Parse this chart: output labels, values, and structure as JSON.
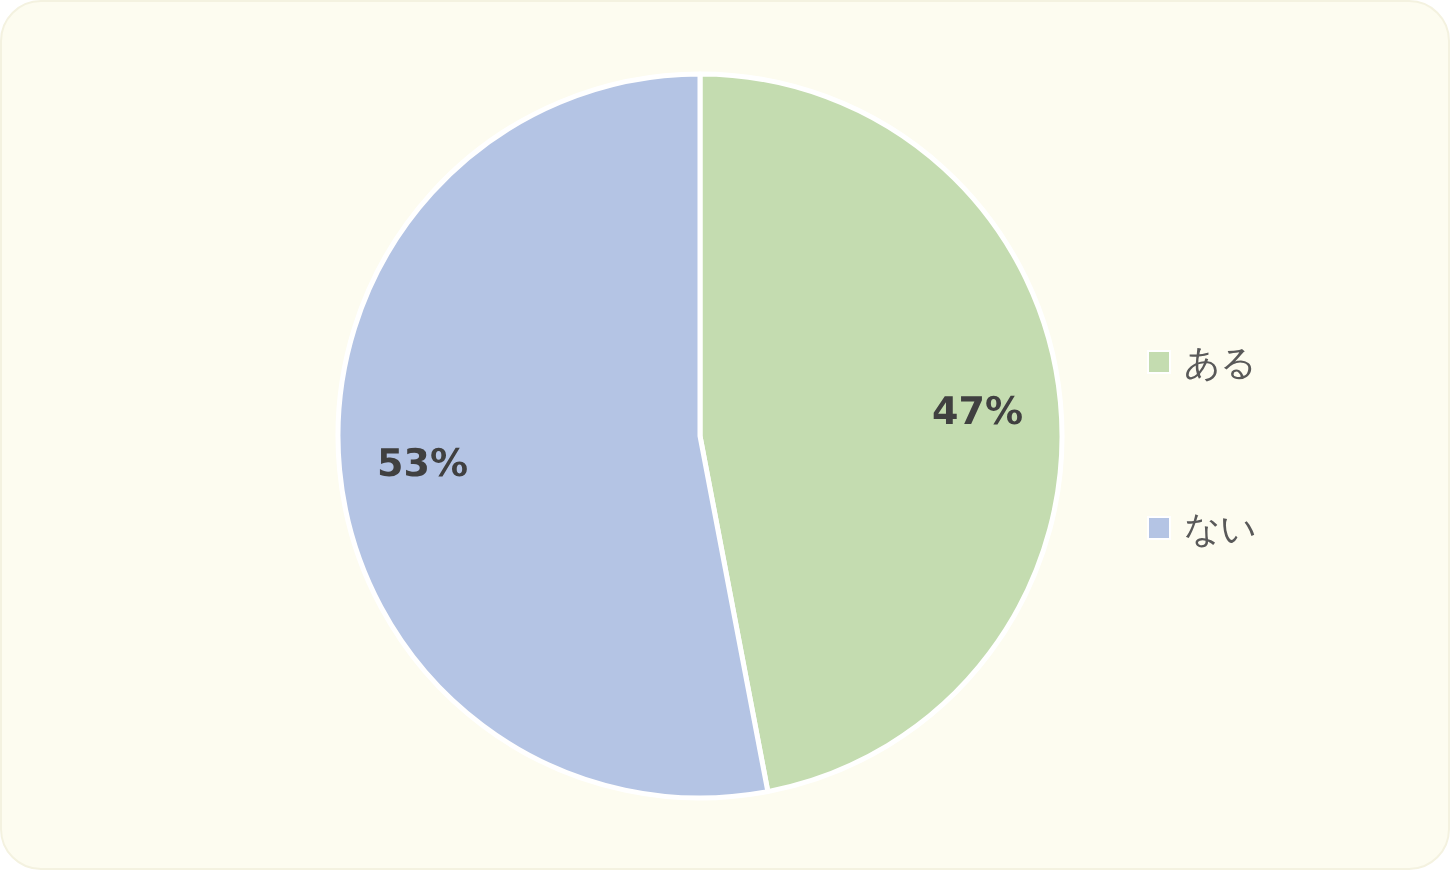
{
  "chart_data": {
    "type": "pie",
    "categories": [
      "ある",
      "ない"
    ],
    "values": [
      47,
      53
    ],
    "colors": [
      "#c4dcb0",
      "#b4c4e4"
    ],
    "value_labels": [
      "47%",
      "53%"
    ],
    "legend": "right"
  }
}
